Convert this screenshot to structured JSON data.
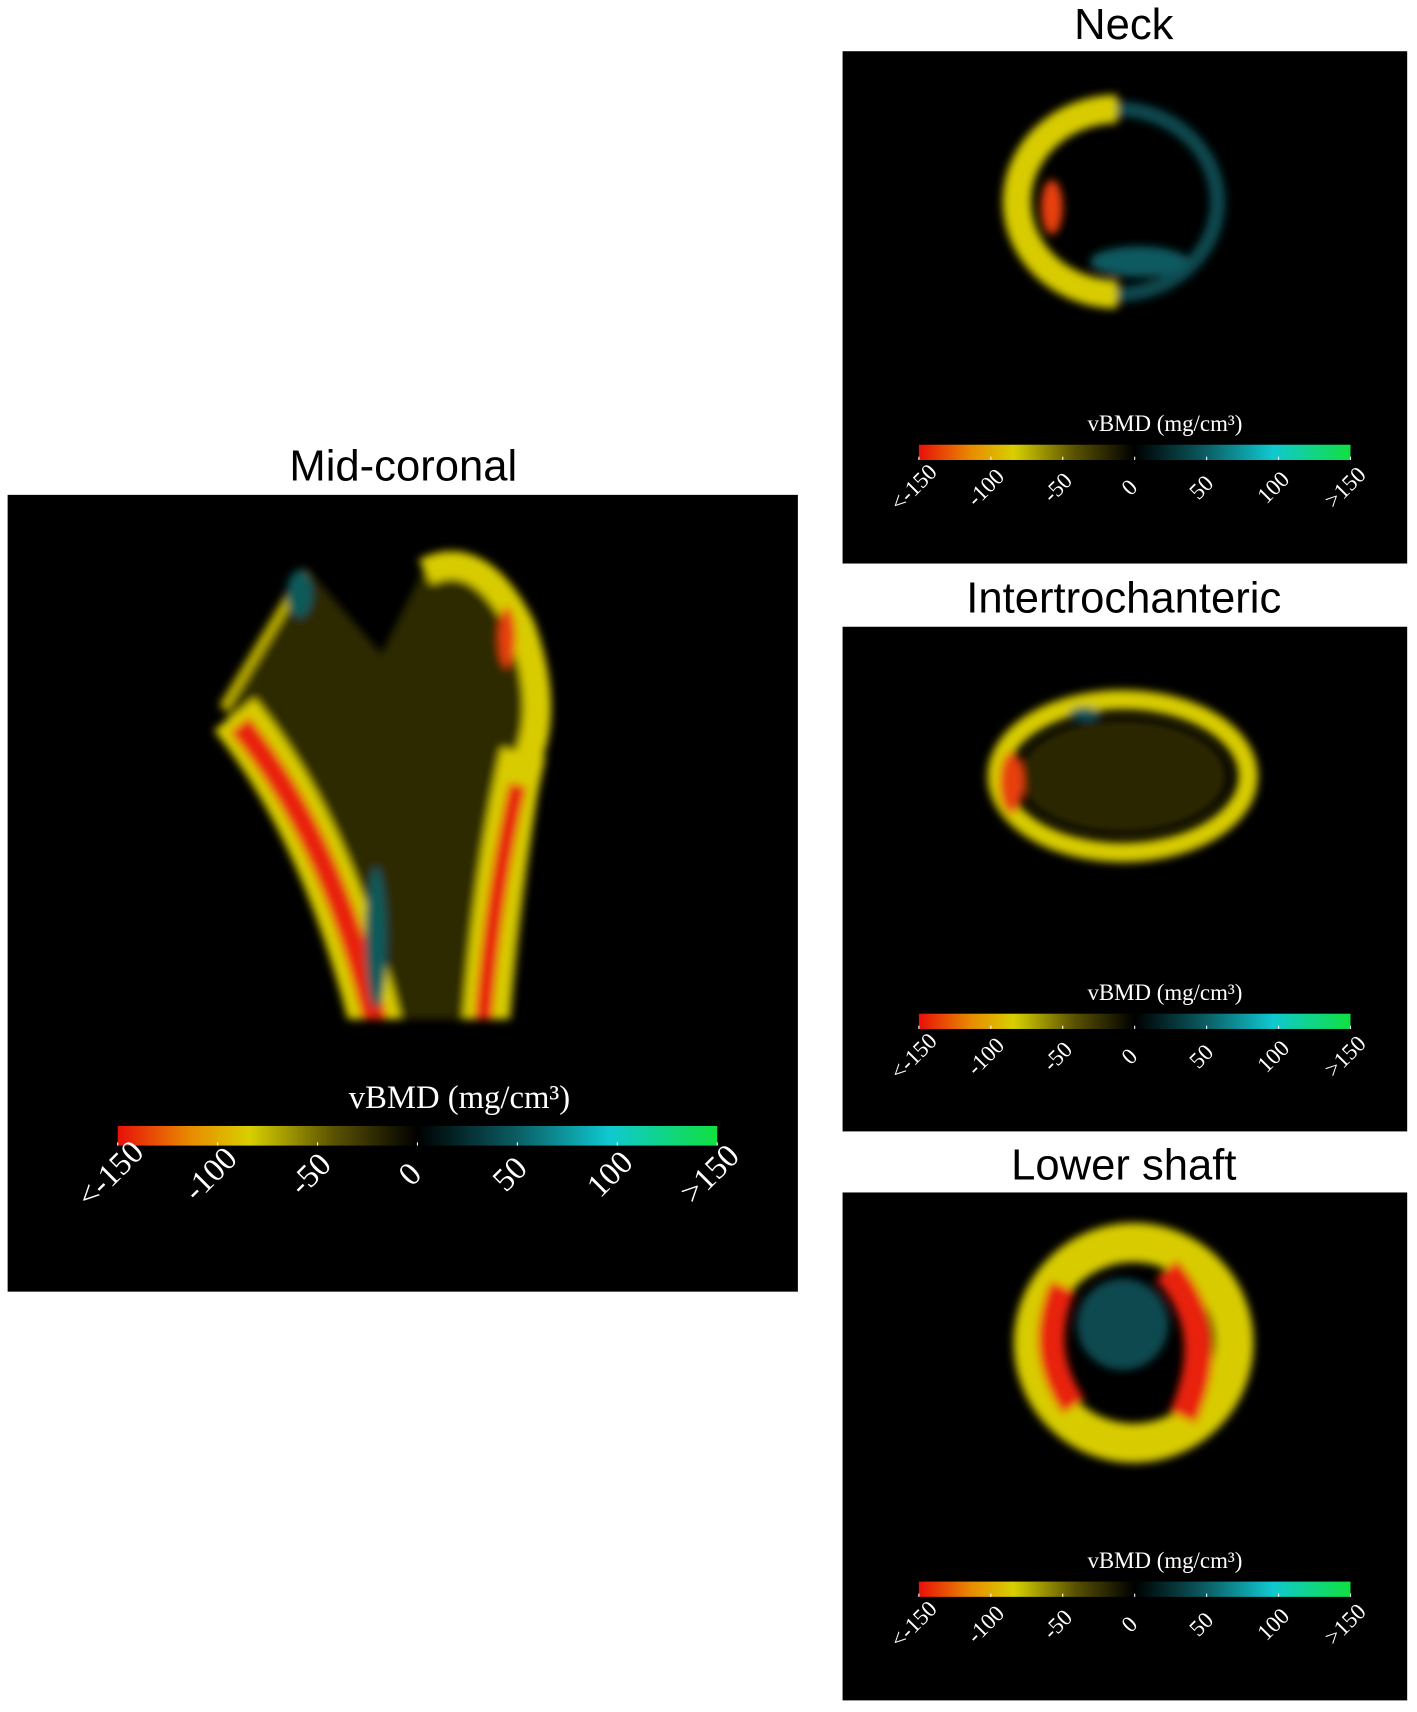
{
  "panels": [
    {
      "title": "Mid-coronal",
      "colorbar": {
        "label": "vBMD (mg/cm³)",
        "lim": [
          -150,
          150
        ],
        "ticks": [
          {
            "value": -150,
            "label": "<-150"
          },
          -100,
          -50,
          0,
          50,
          100,
          {
            "value": 150,
            "label": ">150"
          }
        ]
      }
    },
    {
      "title": "Neck",
      "colorbar": {
        "label": "vBMD (mg/cm³)",
        "lim": [
          -150,
          150
        ],
        "ticks": [
          {
            "value": -150,
            "label": "<-150"
          },
          -100,
          -50,
          0,
          50,
          100,
          {
            "value": 150,
            "label": ">150"
          }
        ]
      }
    },
    {
      "title": "Intertrochanteric",
      "colorbar": {
        "label": "vBMD (mg/cm³)",
        "lim": [
          -150,
          150
        ],
        "ticks": [
          {
            "value": -150,
            "label": "<-150"
          },
          -100,
          -50,
          0,
          50,
          100,
          {
            "value": 150,
            "label": ">150"
          }
        ]
      }
    },
    {
      "title": "Lower shaft",
      "colorbar": {
        "label": "vBMD (mg/cm³)",
        "lim": [
          -150,
          150
        ],
        "ticks": [
          {
            "value": -150,
            "label": "<-150"
          },
          -100,
          -50,
          0,
          50,
          100,
          {
            "value": 150,
            "label": ">150"
          }
        ]
      }
    }
  ]
}
